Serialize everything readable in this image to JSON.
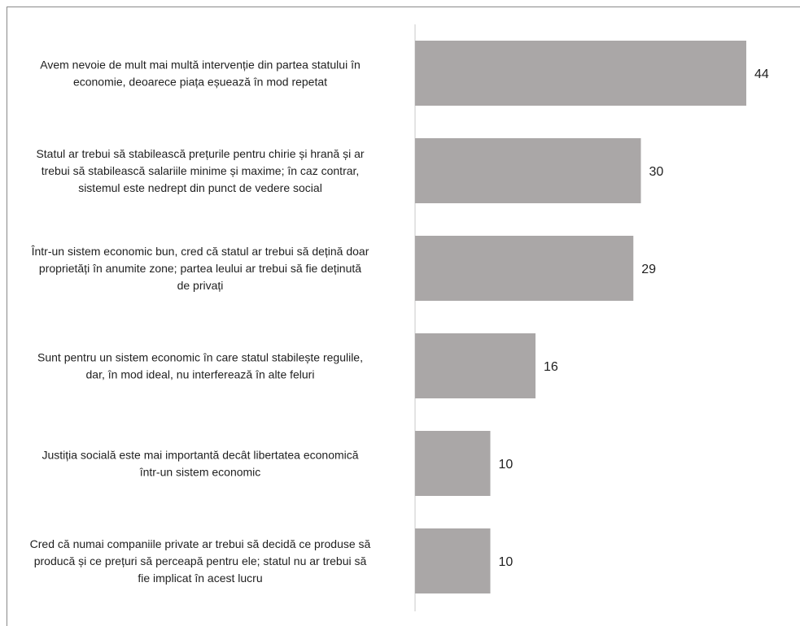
{
  "chart_data": {
    "type": "bar",
    "orientation": "horizontal",
    "categories": [
      [
        "Avem nevoie de mult mai multă intervenție din partea statului în",
        "economie, deoarece piața eșuează în mod repetat"
      ],
      [
        "Statul ar trebui să stabilească prețurile pentru chirie și hrană și ar",
        "trebui să stabilească salariile minime și maxime; în caz contrar,",
        "sistemul este nedrept din punct de vedere social"
      ],
      [
        "Într-un sistem economic bun, cred că statul ar trebui să dețină doar",
        "proprietăți în anumite zone; partea leului ar trebui să fie deținută",
        "de privați"
      ],
      [
        "Sunt pentru un sistem economic în care statul stabilește regulile,",
        "dar, în mod ideal, nu interferează în alte feluri"
      ],
      [
        "Justiția socială este mai importantă decât libertatea economică",
        "într-un sistem economic"
      ],
      [
        "Cred că numai companiile private ar trebui să decidă ce produse să",
        "producă și ce prețuri să perceapă pentru ele; statul nu ar trebui să",
        "fie implicat în acest lucru"
      ]
    ],
    "values": [
      44,
      30,
      29,
      16,
      10,
      10
    ],
    "title": "",
    "xlabel": "",
    "ylabel": "",
    "xlim": [
      0,
      50
    ],
    "grid": false,
    "legend": "none",
    "data_labels": true,
    "colors": {
      "bar": "#aaa7a7",
      "axis": "#c8c8c8",
      "text": "#1f1f1f",
      "frame": "#8a8a8a"
    }
  }
}
